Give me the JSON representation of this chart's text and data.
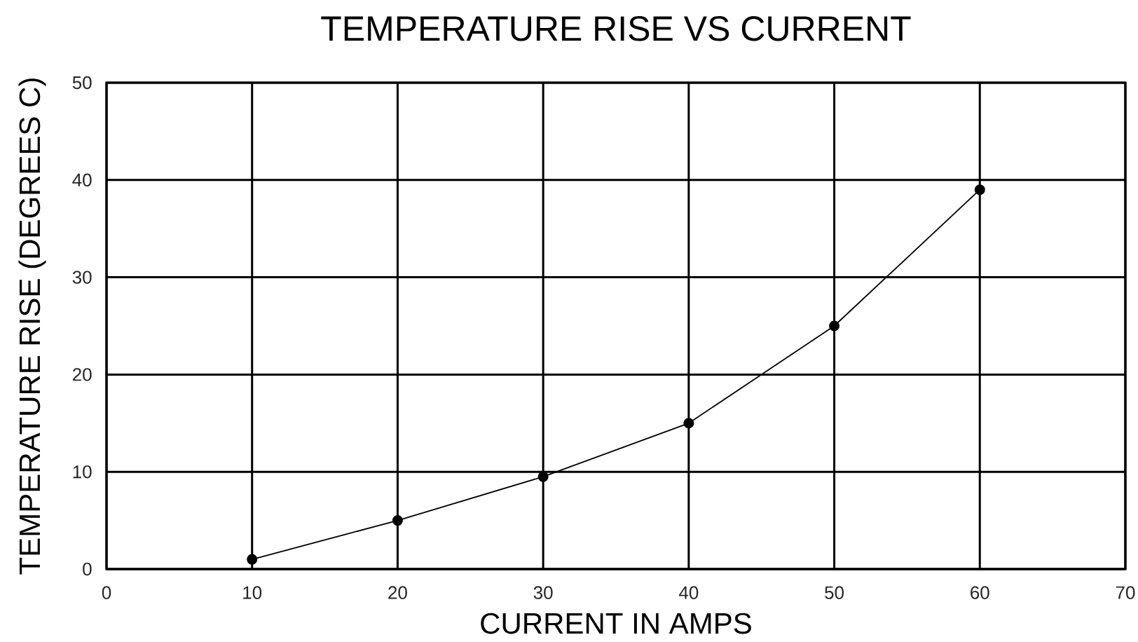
{
  "chart_data": {
    "type": "line",
    "title": "TEMPERATURE RISE VS CURRENT",
    "xlabel": "CURRENT IN AMPS",
    "ylabel": "TEMPERATURE RISE (DEGREES C)",
    "x": [
      10,
      20,
      30,
      40,
      50,
      60
    ],
    "series": [
      {
        "color": "#000000",
        "values": [
          1,
          5,
          9.5,
          15,
          25,
          39
        ]
      }
    ],
    "xlim": [
      0,
      70
    ],
    "ylim": [
      0,
      50
    ],
    "xticks": [
      0,
      10,
      20,
      30,
      40,
      50,
      60,
      70
    ],
    "yticks": [
      0,
      10,
      20,
      30,
      40,
      50
    ],
    "grid": true,
    "marker": "circle",
    "line_style": "solid"
  }
}
